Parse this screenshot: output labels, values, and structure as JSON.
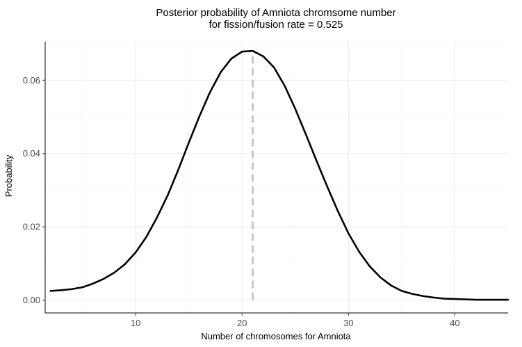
{
  "chart_data": {
    "type": "line",
    "title_line1": "Posterior probability of Amniota chromsome number",
    "title_line2": "for fission/fusion rate = 0.525",
    "xlabel": "Number of chromosomes for Amniota",
    "ylabel": "Probability",
    "xlim": [
      1.5,
      45
    ],
    "ylim": [
      -0.0035,
      0.0705
    ],
    "x_ticks": [
      10,
      20,
      30,
      40
    ],
    "x_tick_labels": [
      "10",
      "20",
      "30",
      "40"
    ],
    "y_ticks": [
      0.0,
      0.02,
      0.04,
      0.06
    ],
    "y_tick_labels": [
      "0.00",
      "0.02",
      "0.04",
      "0.06"
    ],
    "grid": true,
    "series": [
      {
        "x": [
          2,
          3,
          4,
          5,
          6,
          7,
          8,
          9,
          10,
          11,
          12,
          13,
          14,
          15,
          16,
          17,
          18,
          19,
          20,
          21,
          22,
          23,
          24,
          25,
          26,
          27,
          28,
          29,
          30,
          31,
          32,
          33,
          34,
          35,
          36,
          37,
          38,
          39,
          40,
          41,
          42,
          43,
          44,
          45
        ],
        "values": [
          0.0025,
          0.0027,
          0.003,
          0.0035,
          0.0045,
          0.0058,
          0.0075,
          0.0098,
          0.013,
          0.0172,
          0.0225,
          0.0285,
          0.0355,
          0.043,
          0.0502,
          0.0568,
          0.0622,
          0.0659,
          0.0678,
          0.068,
          0.0665,
          0.0635,
          0.0585,
          0.0522,
          0.0452,
          0.038,
          0.031,
          0.0243,
          0.0182,
          0.0132,
          0.0092,
          0.0062,
          0.004,
          0.0025,
          0.0017,
          0.0011,
          0.0007,
          0.0004,
          0.0003,
          0.0002,
          0.0001,
          0.0001,
          0.0001,
          0.0001
        ],
        "color": "#000000"
      }
    ],
    "reference_line": {
      "x": 21,
      "y_from": 0.0,
      "y_to": 0.068,
      "color": "#c8c8c8",
      "style": "dashed"
    },
    "grid_major_color": "#ebebeb",
    "grid_minor_color": "#f5f5f5"
  }
}
